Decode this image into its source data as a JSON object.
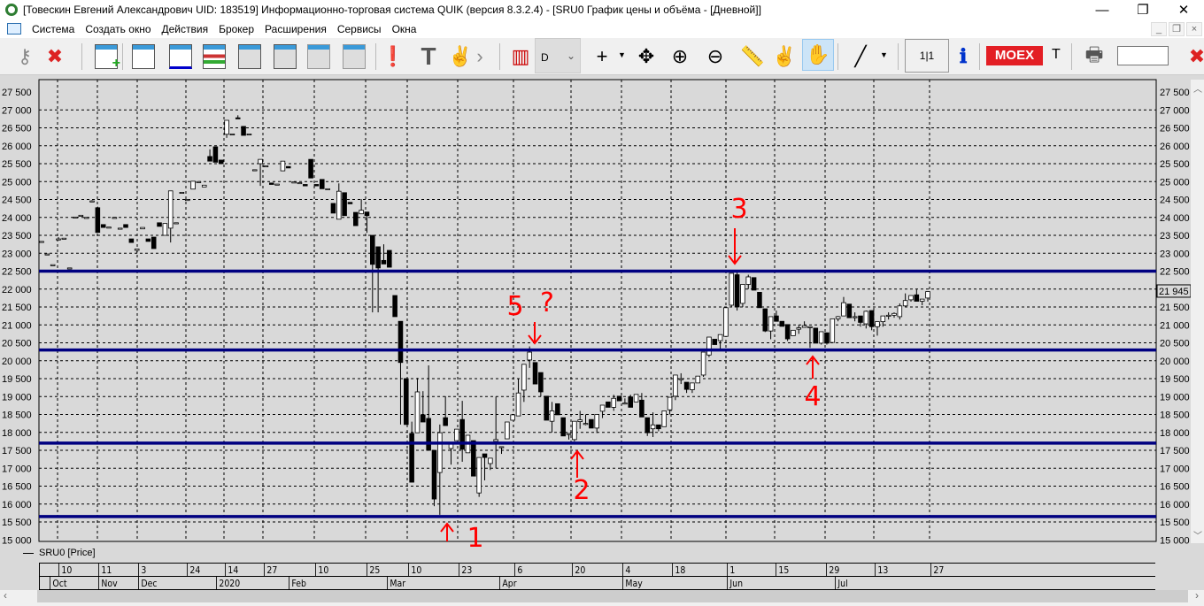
{
  "window": {
    "title": "[Товескин Евгений Александрович UID: 183519] Информационно-торговая система QUIK (версия 8.3.2.4) - [SRU0 График цены и объёма - [Дневной]]",
    "minimize": "—",
    "restore": "❐",
    "close": "✕"
  },
  "menu": [
    "Система",
    "Создать окно",
    "Действия",
    "Брокер",
    "Расширения",
    "Сервисы",
    "Окна"
  ],
  "toolbar": {
    "interval_value": "D",
    "scale_label": "1|1",
    "moex_label": "MOEX",
    "trunc_label": "T",
    "search_value": "",
    "icons": [
      "key-icon",
      "key-disconnect-icon",
      "new-window-icon",
      "chart-window-icon",
      "scatter-window-icon",
      "order-book-icon",
      "deals-icon",
      "table-settings-icon",
      "delete-table-icon",
      "print-table-icon",
      "alert-icon",
      "text-tool-icon",
      "two-finger-icon",
      "chart-type-icon",
      "crosshair-icon",
      "move-icon",
      "zoom-in-icon",
      "zoom-out-icon",
      "ruler-icon",
      "pointer-icon",
      "hand-icon",
      "line-tool-icon",
      "info-icon",
      "print-preview-icon",
      "user-icon"
    ],
    "active_tool": "hand-icon"
  },
  "colors": {
    "level_line": "#000080",
    "annotation": "#ff0000",
    "background": "#d9d9d9"
  },
  "chart_data": {
    "type": "candlestick",
    "instrument": "SRU0",
    "legend": "SRU0 [Price]",
    "interval": "Daily",
    "ylim": [
      15000,
      27500
    ],
    "y_ticks": [
      "27 500",
      "27 000",
      "26 500",
      "26 000",
      "25 500",
      "25 000",
      "24 500",
      "24 000",
      "23 500",
      "23 000",
      "22 500",
      "22 000",
      "21 500",
      "21 000",
      "20 500",
      "20 000",
      "19 500",
      "19 000",
      "18 500",
      "18 000",
      "17 500",
      "17 000",
      "16 500",
      "16 000",
      "15 500",
      "15 000"
    ],
    "last_price": "21 945",
    "grid": true,
    "x_day_ticks": [
      "10",
      "11",
      "3",
      "24",
      "14",
      "27",
      "10",
      "25",
      "10",
      "23",
      "6",
      "20",
      "4",
      "18",
      "1",
      "15",
      "29",
      "13",
      "27"
    ],
    "x_month_ticks": [
      "Oct",
      "Nov",
      "Dec",
      "2020",
      "Feb",
      "Mar",
      "Apr",
      "May",
      "Jun",
      "Jul"
    ],
    "levels": [
      22500,
      20300,
      17700,
      15650
    ],
    "annotations": [
      {
        "label": "1",
        "direction": "up",
        "price": 15700
      },
      {
        "label": "2",
        "direction": "up",
        "price": 17800
      },
      {
        "label": "3",
        "direction": "down",
        "price": 22450
      },
      {
        "label": "4",
        "direction": "up",
        "price": 20450
      },
      {
        "label": "5",
        "direction": "down",
        "price": 20300
      },
      {
        "label": "?",
        "direction": "none",
        "price": 20900
      }
    ],
    "candles_ohlc": [
      [
        23330,
        23330,
        23330,
        23330
      ],
      [
        22980,
        22980,
        22980,
        22980
      ],
      [
        22680,
        22680,
        22680,
        22680
      ],
      [
        23400,
        23450,
        23380,
        23400
      ],
      [
        23420,
        23420,
        23420,
        23420
      ],
      [
        22590,
        22590,
        22590,
        22590
      ],
      [
        24010,
        24010,
        24010,
        24010
      ],
      [
        24060,
        24060,
        24060,
        24060
      ],
      [
        24000,
        24000,
        24000,
        24000
      ],
      [
        24460,
        24480,
        24440,
        24460
      ],
      [
        24270,
        24300,
        23580,
        23580
      ],
      [
        23800,
        23800,
        23720,
        23720
      ],
      [
        23730,
        23730,
        23730,
        23730
      ],
      [
        24000,
        24000,
        24000,
        24000
      ],
      [
        23700,
        23700,
        23700,
        23700
      ],
      [
        23800,
        23800,
        23720,
        23720
      ],
      [
        23400,
        23400,
        23300,
        23300
      ],
      [
        23080,
        23120,
        23000,
        23120
      ],
      [
        23680,
        23720,
        23680,
        23720
      ],
      [
        23400,
        23400,
        23330,
        23330
      ],
      [
        23450,
        23450,
        23130,
        23130
      ],
      [
        23850,
        23850,
        23750,
        23750
      ],
      [
        23500,
        23830,
        23500,
        23830
      ],
      [
        23700,
        24740,
        23300,
        24740
      ],
      [
        23850,
        23850,
        23850,
        23850
      ],
      [
        24700,
        24700,
        24700,
        24700
      ],
      [
        24500,
        24500,
        24500,
        24500
      ],
      [
        24790,
        25010,
        24790,
        25010
      ],
      [
        25000,
        25000,
        25000,
        25000
      ],
      [
        24850,
        24900,
        24850,
        24900
      ],
      [
        25700,
        25900,
        25570,
        25570
      ],
      [
        25970,
        25970,
        25540,
        25540
      ],
      [
        25600,
        25600,
        25500,
        25500
      ],
      [
        26320,
        26710,
        26220,
        26710
      ],
      [
        26330,
        26330,
        26330,
        26330
      ],
      [
        26780,
        26850,
        26760,
        26760
      ],
      [
        26540,
        26540,
        26290,
        26290
      ],
      [
        26330,
        26330,
        26330,
        26330
      ],
      [
        25330,
        25330,
        25330,
        25330
      ],
      [
        25500,
        25620,
        24880,
        25620
      ],
      [
        25440,
        25440,
        25440,
        25440
      ],
      [
        24960,
        24960,
        24920,
        24920
      ],
      [
        24930,
        24930,
        24930,
        24930
      ],
      [
        25300,
        25570,
        25300,
        25570
      ],
      [
        25420,
        25420,
        25380,
        25380
      ],
      [
        24990,
        24990,
        24990,
        24990
      ],
      [
        24970,
        24970,
        24970,
        24970
      ],
      [
        24920,
        24920,
        24880,
        24880
      ],
      [
        25620,
        25620,
        25100,
        25100
      ],
      [
        24920,
        24920,
        24880,
        24880
      ],
      [
        25060,
        25060,
        24800,
        24800
      ],
      [
        24800,
        24800,
        24800,
        24800
      ],
      [
        24390,
        24390,
        24120,
        24120
      ],
      [
        23950,
        24950,
        23950,
        24730
      ],
      [
        24690,
        24690,
        24050,
        24050
      ],
      [
        24420,
        24420,
        24380,
        24380
      ],
      [
        24140,
        24140,
        23770,
        23770
      ],
      [
        24100,
        24510,
        24100,
        24200
      ],
      [
        24150,
        24150,
        23570,
        24050
      ],
      [
        23500,
        23500,
        21350,
        22690
      ],
      [
        23180,
        23180,
        21350,
        22590
      ],
      [
        22800,
        23250,
        22700,
        22700
      ],
      [
        23080,
        23080,
        22610,
        22610
      ],
      [
        21820,
        21820,
        21230,
        21230
      ],
      [
        21100,
        21100,
        18220,
        19950
      ],
      [
        19500,
        19500,
        18220,
        18220
      ],
      [
        17970,
        18300,
        16610,
        16610
      ],
      [
        17990,
        19520,
        17990,
        19130
      ],
      [
        18490,
        19150,
        18290,
        18290
      ],
      [
        18390,
        19870,
        17500,
        17500
      ],
      [
        17500,
        17500,
        15940,
        16140
      ],
      [
        16880,
        18220,
        15700,
        17990
      ],
      [
        18410,
        19010,
        18190,
        18190
      ],
      [
        17550,
        17670,
        17100,
        17670
      ],
      [
        17770,
        18090,
        17770,
        18090
      ],
      [
        18360,
        18880,
        17180,
        17530
      ],
      [
        17430,
        17920,
        17430,
        17920
      ],
      [
        17770,
        17770,
        16780,
        16780
      ],
      [
        16310,
        17300,
        16200,
        17300
      ],
      [
        17400,
        17400,
        16660,
        17300
      ],
      [
        17130,
        17280,
        16950,
        17280
      ],
      [
        17750,
        19000,
        17000,
        17800
      ],
      [
        17600,
        17600,
        17400,
        17600
      ],
      [
        17820,
        18290,
        17820,
        18290
      ],
      [
        18340,
        18490,
        18340,
        18490
      ],
      [
        18460,
        19500,
        18460,
        19100
      ],
      [
        19180,
        19900,
        18850,
        19900
      ],
      [
        20020,
        20400,
        19800,
        20240
      ],
      [
        19950,
        19950,
        19350,
        19350
      ],
      [
        19670,
        19670,
        19000,
        19130
      ],
      [
        19010,
        19010,
        18340,
        18340
      ],
      [
        18310,
        18850,
        18000,
        18600
      ],
      [
        18800,
        18800,
        18490,
        18490
      ],
      [
        18410,
        18410,
        17900,
        17900
      ],
      [
        17970,
        17970,
        17800,
        17970
      ],
      [
        17800,
        18310,
        17750,
        18310
      ],
      [
        18300,
        18600,
        18100,
        18350
      ],
      [
        18250,
        18500,
        18200,
        18250
      ],
      [
        18360,
        18360,
        18120,
        18120
      ],
      [
        18120,
        18500,
        17980,
        18500
      ],
      [
        18590,
        18760,
        18400,
        18760
      ],
      [
        18850,
        18850,
        18700,
        18700
      ],
      [
        18700,
        19050,
        18600,
        18950
      ],
      [
        19010,
        19010,
        18880,
        18880
      ],
      [
        18800,
        18950,
        18780,
        18820
      ],
      [
        18990,
        19050,
        18700,
        18700
      ],
      [
        18850,
        19060,
        18850,
        19060
      ],
      [
        18900,
        19100,
        18430,
        18430
      ],
      [
        18410,
        18410,
        17900,
        17990
      ],
      [
        18100,
        18560,
        17870,
        18210
      ],
      [
        18210,
        18210,
        18030,
        18100
      ],
      [
        18160,
        18600,
        18160,
        18600
      ],
      [
        18630,
        18980,
        18500,
        18980
      ],
      [
        19010,
        19600,
        18900,
        19600
      ],
      [
        19500,
        19650,
        19350,
        19500
      ],
      [
        19400,
        19400,
        19100,
        19200
      ],
      [
        19190,
        19380,
        19100,
        19380
      ],
      [
        19380,
        19570,
        19380,
        19570
      ],
      [
        19600,
        20240,
        19550,
        20240
      ],
      [
        20160,
        20660,
        20100,
        20660
      ],
      [
        20600,
        20600,
        20450,
        20450
      ],
      [
        20560,
        20730,
        20300,
        20730
      ],
      [
        20680,
        21480,
        20680,
        21480
      ],
      [
        21550,
        22440,
        21500,
        22440
      ],
      [
        22400,
        22500,
        21400,
        21500
      ],
      [
        21600,
        22130,
        21500,
        22130
      ],
      [
        22130,
        22400,
        22000,
        22340
      ],
      [
        22320,
        22320,
        21970,
        21970
      ],
      [
        21910,
        21910,
        21480,
        21480
      ],
      [
        21450,
        21450,
        20800,
        20830
      ],
      [
        20830,
        21230,
        20600,
        21230
      ],
      [
        21250,
        21400,
        21100,
        21100
      ],
      [
        21100,
        21100,
        20960,
        20960
      ],
      [
        21010,
        21010,
        20550,
        20610
      ],
      [
        20700,
        20850,
        20700,
        20850
      ],
      [
        20880,
        21000,
        20750,
        20920
      ],
      [
        20930,
        21100,
        20930,
        20980
      ],
      [
        20950,
        20950,
        20360,
        20950
      ],
      [
        20910,
        20910,
        20490,
        20490
      ],
      [
        20490,
        20810,
        20450,
        20810
      ],
      [
        20780,
        20780,
        20450,
        20490
      ],
      [
        20510,
        21170,
        20510,
        21170
      ],
      [
        21170,
        21250,
        21100,
        21230
      ],
      [
        21250,
        21780,
        21250,
        21620
      ],
      [
        21580,
        21580,
        21200,
        21200
      ],
      [
        21230,
        21350,
        21100,
        21230
      ],
      [
        21250,
        21250,
        20950,
        21070
      ],
      [
        21030,
        21400,
        20900,
        21380
      ],
      [
        21400,
        21400,
        20850,
        20950
      ],
      [
        20950,
        21090,
        20700,
        21090
      ],
      [
        21090,
        21250,
        20950,
        21250
      ],
      [
        21270,
        21350,
        21150,
        21270
      ],
      [
        21270,
        21350,
        21200,
        21320
      ],
      [
        21230,
        21600,
        21150,
        21530
      ],
      [
        21530,
        21880,
        21500,
        21680
      ],
      [
        21700,
        21820,
        21650,
        21820
      ],
      [
        21840,
        21990,
        21660,
        21660
      ],
      [
        21660,
        21720,
        21550,
        21720
      ],
      [
        21750,
        21930,
        21650,
        21930
      ]
    ]
  }
}
